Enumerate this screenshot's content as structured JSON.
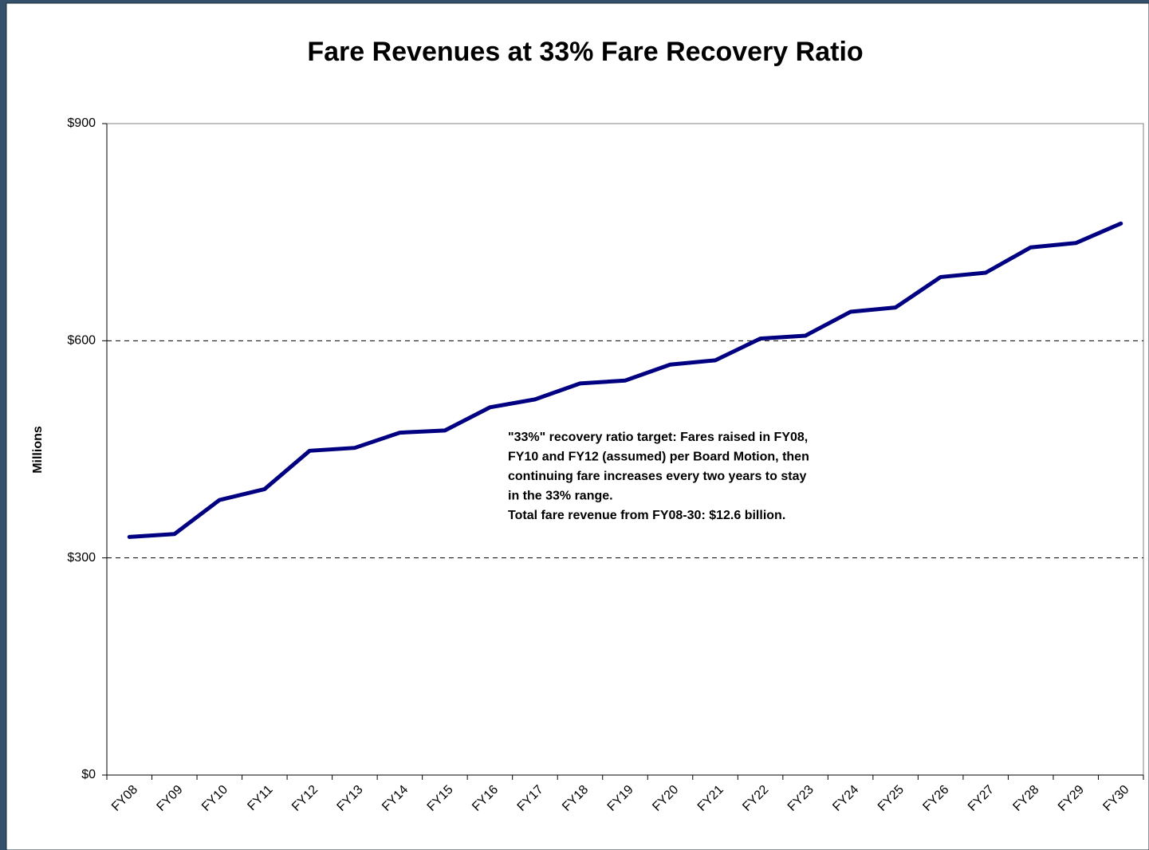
{
  "chart_data": {
    "type": "line",
    "title": "Fare Revenues at 33% Fare Recovery Ratio",
    "y_label": "Millions",
    "annotation": [
      "\"33%\" recovery ratio target:  Fares raised in FY08,",
      "FY10 and FY12 (assumed) per Board Motion, then",
      "continuing fare increases every two years to stay",
      "in the 33% range.",
      "Total fare revenue from FY08-30: $12.6 billion."
    ],
    "categories": [
      "FY08",
      "FY09",
      "FY10",
      "FY11",
      "FY12",
      "FY13",
      "FY14",
      "FY15",
      "FY16",
      "FY17",
      "FY18",
      "FY19",
      "FY20",
      "FY21",
      "FY22",
      "FY23",
      "FY24",
      "FY25",
      "FY26",
      "FY27",
      "FY28",
      "FY29",
      "FY30"
    ],
    "series": [
      {
        "name": "Fare revenue",
        "color": "#000080",
        "values": [
          329,
          333,
          380,
          395,
          448,
          452,
          473,
          476,
          508,
          519,
          541,
          545,
          567,
          573,
          603,
          607,
          640,
          646,
          688,
          694,
          729,
          735,
          762
        ]
      }
    ],
    "ylim": [
      0,
      900
    ],
    "yticks": [
      {
        "value": 0,
        "label": "$0"
      },
      {
        "value": 300,
        "label": "$300"
      },
      {
        "value": 600,
        "label": "$600"
      },
      {
        "value": 900,
        "label": "$900"
      }
    ],
    "grid": true
  }
}
